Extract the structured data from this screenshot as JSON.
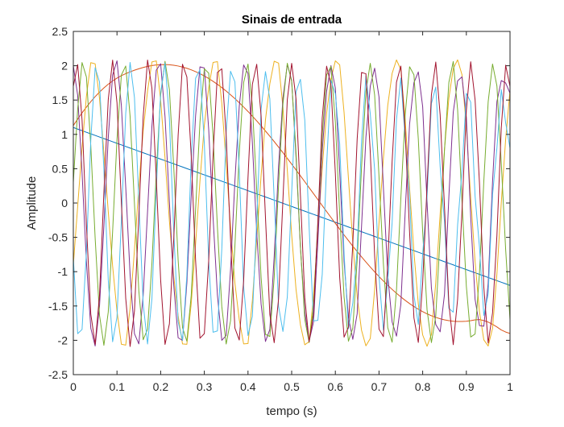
{
  "chart_data": {
    "type": "line",
    "title": "Sinais de entrada",
    "xlabel": "tempo (s)",
    "ylabel": "Amplitude",
    "xlim": [
      0,
      1
    ],
    "ylim": [
      -2.5,
      2.5
    ],
    "xticks": [
      0,
      0.1,
      0.2,
      0.3,
      0.4,
      0.5,
      0.6,
      0.7,
      0.8,
      0.9,
      1
    ],
    "xtick_labels": [
      "0",
      "0.1",
      "0.2",
      "0.3",
      "0.4",
      "0.5",
      "0.6",
      "0.7",
      "0.8",
      "0.9",
      "1"
    ],
    "yticks": [
      -2.5,
      -2,
      -1.5,
      -1,
      -0.5,
      0,
      0.5,
      1,
      1.5,
      2,
      2.5
    ],
    "ytick_labels": [
      "-2.5",
      "-2",
      "-1.5",
      "-1",
      "-0.5",
      "0",
      "0.5",
      "1",
      "1.5",
      "2",
      "2.5"
    ],
    "grid": false,
    "legend": "none",
    "x": [
      0,
      0.01,
      0.02,
      0.03,
      0.04,
      0.05,
      0.06,
      0.07,
      0.08,
      0.09,
      0.1,
      0.11,
      0.12,
      0.13,
      0.14,
      0.15,
      0.16,
      0.17,
      0.18,
      0.19,
      0.2,
      0.21,
      0.22,
      0.23,
      0.24,
      0.25,
      0.26,
      0.27,
      0.28,
      0.29,
      0.3,
      0.31,
      0.32,
      0.33,
      0.34,
      0.35,
      0.36,
      0.37,
      0.38,
      0.39,
      0.4,
      0.41,
      0.42,
      0.43,
      0.44,
      0.45,
      0.46,
      0.47,
      0.48,
      0.49,
      0.5,
      0.51,
      0.52,
      0.53,
      0.54,
      0.55,
      0.56,
      0.57,
      0.58,
      0.59,
      0.6,
      0.61,
      0.62,
      0.63,
      0.64,
      0.65,
      0.66,
      0.67,
      0.68,
      0.69,
      0.7,
      0.71,
      0.72,
      0.73,
      0.74,
      0.75,
      0.76,
      0.77,
      0.78,
      0.79,
      0.8,
      0.81,
      0.82,
      0.83,
      0.84,
      0.85,
      0.86,
      0.87,
      0.88,
      0.89,
      0.9,
      0.91,
      0.92,
      0.93,
      0.94,
      0.95,
      0.96,
      0.97,
      0.98,
      0.99,
      1
    ],
    "series": [
      {
        "color": "#0072BD",
        "values": [
          1.1,
          1.077,
          1.054,
          1.031,
          1.008,
          0.985,
          0.962,
          0.939,
          0.916,
          0.893,
          0.87,
          0.847,
          0.824,
          0.801,
          0.778,
          0.755,
          0.732,
          0.709,
          0.686,
          0.663,
          0.64,
          0.617,
          0.594,
          0.571,
          0.548,
          0.525,
          0.502,
          0.479,
          0.456,
          0.433,
          0.41,
          0.387,
          0.364,
          0.341,
          0.318,
          0.295,
          0.272,
          0.249,
          0.226,
          0.203,
          0.18,
          0.157,
          0.134,
          0.111,
          0.088,
          0.065,
          0.042,
          0.019,
          -0.004,
          -0.027,
          -0.05,
          -0.073,
          -0.096,
          -0.119,
          -0.142,
          -0.165,
          -0.188,
          -0.211,
          -0.234,
          -0.257,
          -0.28,
          -0.303,
          -0.326,
          -0.349,
          -0.372,
          -0.395,
          -0.418,
          -0.441,
          -0.464,
          -0.487,
          -0.51,
          -0.533,
          -0.556,
          -0.579,
          -0.602,
          -0.625,
          -0.648,
          -0.671,
          -0.694,
          -0.717,
          -0.74,
          -0.763,
          -0.786,
          -0.809,
          -0.832,
          -0.855,
          -0.878,
          -0.901,
          -0.924,
          -0.947,
          -0.97,
          -0.993,
          -1.016,
          -1.039,
          -1.062,
          -1.085,
          -1.108,
          -1.131,
          -1.154,
          -1.177,
          -1.2
        ]
      },
      {
        "color": "#D95319",
        "values": [
          1.129,
          1.223,
          1.314,
          1.398,
          1.477,
          1.55,
          1.617,
          1.677,
          1.731,
          1.778,
          1.82,
          1.855,
          1.885,
          1.911,
          1.935,
          1.956,
          1.975,
          1.991,
          2.003,
          2.011,
          2.016,
          2.017,
          2.014,
          2.007,
          1.996,
          1.981,
          1.963,
          1.94,
          1.914,
          1.884,
          1.851,
          1.814,
          1.773,
          1.729,
          1.682,
          1.631,
          1.577,
          1.521,
          1.461,
          1.399,
          1.334,
          1.266,
          1.196,
          1.124,
          1.049,
          0.973,
          0.895,
          0.815,
          0.734,
          0.651,
          0.567,
          0.482,
          0.397,
          0.311,
          0.224,
          0.137,
          0.05,
          -0.037,
          -0.124,
          -0.21,
          -0.296,
          -0.381,
          -0.465,
          -0.547,
          -0.628,
          -0.707,
          -0.784,
          -0.859,
          -0.932,
          -1.003,
          -1.071,
          -1.136,
          -1.199,
          -1.258,
          -1.315,
          -1.368,
          -1.418,
          -1.465,
          -1.508,
          -1.547,
          -1.582,
          -1.614,
          -1.642,
          -1.666,
          -1.686,
          -1.702,
          -1.714,
          -1.722,
          -1.726,
          -1.726,
          -1.722,
          -1.714,
          -1.702,
          -1.698,
          -1.712,
          -1.735,
          -1.767,
          -1.805,
          -1.849,
          -1.879,
          -1.9
        ]
      },
      {
        "color": "#EDB120",
        "values": [
          -0.9,
          -0.047,
          0.809,
          1.558,
          2.045,
          2.028,
          1.525,
          0.736,
          -0.126,
          -0.92,
          -1.575,
          -2.057,
          -2.07,
          -1.532,
          -0.681,
          0.237,
          1.056,
          1.632,
          2.056,
          2.071,
          1.498,
          0.655,
          -0.26,
          -1.071,
          -1.641,
          -2.053,
          -2.058,
          -1.466,
          -0.594,
          0.323,
          1.131,
          1.678,
          2.048,
          2.06,
          1.452,
          0.582,
          -0.344,
          -1.164,
          -1.699,
          -2.052,
          -2.047,
          -1.422,
          -0.53,
          0.4,
          1.214,
          1.738,
          2.066,
          2.039,
          1.392,
          0.479,
          -0.462,
          -1.259,
          -1.772,
          -2.065,
          -2.02,
          -1.352,
          -0.43,
          0.508,
          1.307,
          1.805,
          2.072,
          2.013,
          1.319,
          0.36,
          -0.582,
          -1.367,
          -1.854,
          -2.081,
          -1.973,
          -1.264,
          -0.291,
          0.649,
          1.422,
          1.888,
          2.085,
          1.944,
          1.212,
          0.221,
          -0.719,
          -1.474,
          -1.922,
          -2.087,
          -1.914,
          -1.158,
          -0.158,
          0.786,
          1.528,
          1.96,
          2.086,
          1.869,
          1.097,
          0.082,
          -0.854,
          -1.582,
          -1.993,
          -2.083,
          -1.825,
          -1.032,
          0.003,
          0.928,
          1.64
        ]
      },
      {
        "color": "#7E2F8E",
        "values": [
          2.0,
          1.569,
          0.44,
          -0.86,
          -1.822,
          -2.083,
          -1.5,
          -0.339,
          0.951,
          1.866,
          2.072,
          1.424,
          0.233,
          -1.038,
          -1.904,
          -2.052,
          -1.343,
          -0.123,
          1.119,
          1.936,
          2.029,
          1.258,
          0.014,
          -1.197,
          -1.963,
          -2.001,
          -1.168,
          0.097,
          1.272,
          1.984,
          1.968,
          1.074,
          -0.208,
          -1.343,
          -2.0,
          -1.93,
          -0.977,
          0.318,
          1.409,
          2.011,
          1.888,
          0.877,
          -0.428,
          -1.471,
          -2.017,
          -1.842,
          -0.774,
          0.537,
          1.528,
          2.017,
          1.79,
          0.668,
          -0.645,
          -1.58,
          -2.012,
          -1.735,
          -0.561,
          0.751,
          1.627,
          2.002,
          1.676,
          0.452,
          -0.855,
          -1.668,
          -1.986,
          -1.613,
          -0.342,
          0.956,
          1.703,
          1.965,
          1.546,
          0.233,
          -1.054,
          -1.731,
          -1.94,
          -1.476,
          -0.123,
          1.148,
          1.754,
          1.91,
          1.403,
          0.014,
          -1.238,
          -1.77,
          -1.876,
          -1.328,
          0.095,
          1.323,
          1.78,
          1.838,
          1.25,
          -0.203,
          -1.403,
          -1.785,
          -1.795,
          -1.17,
          0.31,
          1.477,
          1.784,
          1.749,
          1.6
        ]
      },
      {
        "color": "#77AC30",
        "values": [
          0.3,
          1.37,
          2.047,
          1.836,
          0.834,
          -0.512,
          -1.637,
          -2.073,
          -1.587,
          -0.414,
          0.928,
          1.865,
          1.996,
          1.264,
          -0.008,
          -1.278,
          -1.992,
          -1.837,
          -0.881,
          0.451,
          1.575,
          2.065,
          1.654,
          0.521,
          -0.828,
          -1.813,
          -2.013,
          -1.346,
          -0.09,
          1.181,
          1.955,
          1.893,
          0.984,
          -0.357,
          -1.509,
          -2.054,
          -1.716,
          -0.627,
          0.728,
          1.755,
          2.025,
          1.425,
          0.189,
          -1.083,
          -1.913,
          -1.944,
          -1.083,
          0.262,
          1.44,
          2.036,
          1.772,
          0.731,
          -0.627,
          -1.693,
          -2.033,
          -1.501,
          -0.288,
          0.983,
          1.866,
          1.989,
          1.179,
          -0.166,
          -1.367,
          -2.013,
          -1.823,
          -0.833,
          0.524,
          1.625,
          2.035,
          1.573,
          0.387,
          -0.881,
          -1.815,
          -2.028,
          -1.272,
          0.069,
          1.291,
          1.985,
          1.868,
          0.933,
          -0.421,
          -1.553,
          -2.033,
          -1.642,
          -0.485,
          0.779,
          1.759,
          2.061,
          1.36,
          0.028,
          -1.212,
          -1.952,
          -1.908,
          -1.03,
          0.316,
          1.476,
          2.025,
          1.706,
          0.582,
          -0.675,
          -1.7
        ]
      },
      {
        "color": "#4DBEEE",
        "values": [
          -0.8,
          -1.903,
          -1.842,
          -0.706,
          0.915,
          1.972,
          1.763,
          0.488,
          -1.12,
          -2.021,
          -1.661,
          -0.263,
          1.306,
          2.048,
          1.537,
          0.032,
          -1.47,
          -2.054,
          -1.393,
          0.197,
          1.611,
          2.038,
          1.231,
          -0.421,
          -1.728,
          -2.0,
          -1.054,
          0.637,
          1.818,
          1.942,
          0.866,
          -0.842,
          -1.882,
          -1.863,
          -0.668,
          1.033,
          1.92,
          1.765,
          0.465,
          -1.209,
          -1.93,
          -1.649,
          -0.259,
          1.367,
          1.914,
          1.517,
          0.053,
          -1.505,
          -1.871,
          -1.37,
          0.152,
          1.622,
          1.802,
          1.21,
          -0.353,
          -1.717,
          -1.709,
          -1.039,
          0.548,
          1.787,
          1.593,
          0.86,
          -0.734,
          -1.833,
          -1.456,
          -0.674,
          0.909,
          1.854,
          1.3,
          0.484,
          -1.07,
          -1.85,
          -1.127,
          -0.291,
          1.215,
          1.821,
          0.94,
          0.099,
          -1.342,
          -1.767,
          -0.741,
          0.09,
          1.449,
          1.69,
          0.532,
          -0.277,
          -1.535,
          -1.59,
          -0.318,
          0.459,
          1.598,
          1.469,
          0.1,
          -0.634,
          -1.637,
          -1.328,
          0.119,
          0.8,
          1.652,
          1.169,
          0.8
        ]
      },
      {
        "color": "#A2142F",
        "values": [
          1.7,
          2.018,
          1.21,
          -0.316,
          -1.618,
          -2.058,
          -1.34,
          0.149,
          1.508,
          2.082,
          1.461,
          0.02,
          -1.389,
          -2.09,
          -1.572,
          -0.189,
          1.261,
          2.083,
          1.672,
          0.357,
          -1.126,
          -2.06,
          -1.761,
          -0.522,
          0.984,
          2.022,
          1.838,
          0.684,
          -0.836,
          -1.97,
          -1.903,
          -0.84,
          0.684,
          1.903,
          1.956,
          0.991,
          -0.528,
          -1.822,
          -1.996,
          -1.134,
          0.369,
          1.729,
          2.022,
          1.27,
          -0.209,
          -1.623,
          -2.035,
          -1.397,
          0.048,
          1.505,
          2.035,
          1.515,
          0.114,
          -1.377,
          -2.021,
          -1.624,
          -0.275,
          1.238,
          1.994,
          1.722,
          0.434,
          -1.09,
          -1.954,
          -1.808,
          -0.589,
          0.934,
          1.902,
          1.883,
          0.741,
          -0.77,
          -1.837,
          -1.946,
          -0.887,
          0.6,
          1.761,
          1.995,
          1.027,
          -0.425,
          -1.673,
          -2.031,
          -1.16,
          0.246,
          1.575,
          2.054,
          1.284,
          -0.065,
          -1.467,
          -2.063,
          -1.4,
          -0.117,
          1.35,
          2.058,
          1.505,
          0.298,
          -1.226,
          -2.04,
          -1.6,
          -0.476,
          1.094,
          2.008,
          1.7
        ]
      }
    ]
  }
}
